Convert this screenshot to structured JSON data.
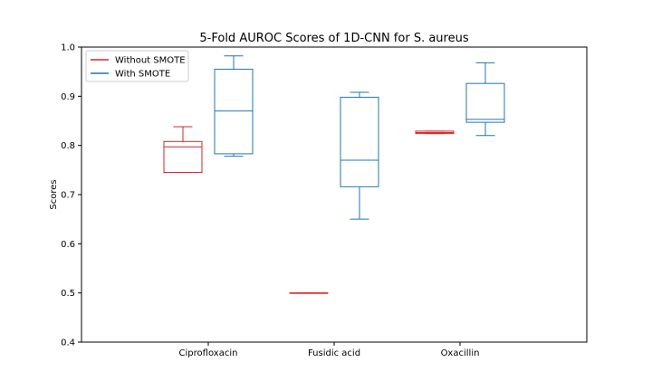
{
  "chart_data": {
    "type": "box",
    "title": "5-Fold AUROC Scores of 1D-CNN for S. aureus",
    "xlabel": "",
    "ylabel": "Scores",
    "categories": [
      "Ciprofloxacin",
      "Fusidic acid",
      "Oxacillin"
    ],
    "ylim": [
      0.4,
      1.0
    ],
    "yticks": [
      0.4,
      0.5,
      0.6,
      0.7,
      0.8,
      0.9,
      1.0
    ],
    "ytick_labels": [
      "0.4",
      "0.5",
      "0.6",
      "0.7",
      "0.8",
      "0.9",
      "1.0"
    ],
    "grid": false,
    "legend_position": "top-left",
    "series": [
      {
        "name": "Without SMOTE",
        "color": "#d62728",
        "boxes": [
          {
            "category": "Ciprofloxacin",
            "whisker_low": 0.745,
            "q1": 0.745,
            "median": 0.797,
            "q3": 0.808,
            "whisker_high": 0.838
          },
          {
            "category": "Fusidic acid",
            "whisker_low": 0.5,
            "q1": 0.5,
            "median": 0.5,
            "q3": 0.5,
            "whisker_high": 0.5
          },
          {
            "category": "Oxacillin",
            "whisker_low": 0.824,
            "q1": 0.824,
            "median": 0.826,
            "q3": 0.829,
            "whisker_high": 0.829
          }
        ]
      },
      {
        "name": "With SMOTE",
        "color": "#1f77b4",
        "boxes": [
          {
            "category": "Ciprofloxacin",
            "whisker_low": 0.778,
            "q1": 0.783,
            "median": 0.87,
            "q3": 0.955,
            "whisker_high": 0.982
          },
          {
            "category": "Fusidic acid",
            "whisker_low": 0.65,
            "q1": 0.716,
            "median": 0.77,
            "q3": 0.898,
            "whisker_high": 0.908
          },
          {
            "category": "Oxacillin",
            "whisker_low": 0.82,
            "q1": 0.847,
            "median": 0.853,
            "q3": 0.926,
            "whisker_high": 0.968
          }
        ]
      }
    ]
  }
}
